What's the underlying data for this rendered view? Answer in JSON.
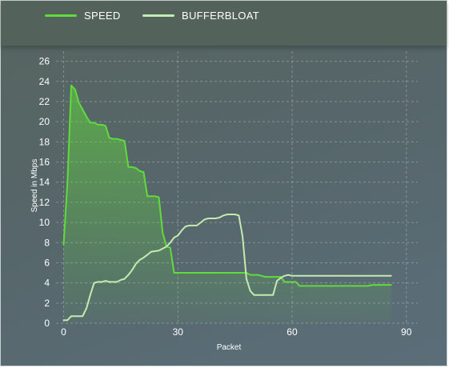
{
  "chart_data": {
    "type": "line",
    "title": "",
    "xlabel": "Packet",
    "ylabel": "Speed in Mbps",
    "xlim": [
      -2,
      93
    ],
    "ylim": [
      0,
      27
    ],
    "x_ticks": [
      0,
      30,
      60,
      90
    ],
    "y_ticks": [
      0,
      2,
      4,
      6,
      8,
      10,
      12,
      14,
      16,
      18,
      20,
      22,
      24,
      26
    ],
    "grid": true,
    "legend_position": "top-left",
    "series": [
      {
        "name": "SPEED",
        "color": "#5fdc3a",
        "fill": true,
        "points": [
          [
            0,
            7.8
          ],
          [
            1,
            14
          ],
          [
            2,
            23.6
          ],
          [
            3,
            23.2
          ],
          [
            4,
            21.9
          ],
          [
            5,
            21.2
          ],
          [
            6,
            20.5
          ],
          [
            7,
            19.9
          ],
          [
            8,
            19.9
          ],
          [
            9,
            19.7
          ],
          [
            10,
            19.7
          ],
          [
            11,
            19.6
          ],
          [
            12,
            18.4
          ],
          [
            13,
            18.3
          ],
          [
            14,
            18.3
          ],
          [
            15,
            18.2
          ],
          [
            16,
            18.1
          ],
          [
            17,
            15.5
          ],
          [
            18,
            15.5
          ],
          [
            19,
            15.4
          ],
          [
            20,
            15.1
          ],
          [
            21,
            15.0
          ],
          [
            22,
            12.6
          ],
          [
            23,
            12.6
          ],
          [
            24,
            12.6
          ],
          [
            25,
            12.5
          ],
          [
            26,
            9.0
          ],
          [
            27,
            7.6
          ],
          [
            28,
            7.5
          ],
          [
            29,
            5.0
          ],
          [
            30,
            5.0
          ],
          [
            35,
            5.0
          ],
          [
            40,
            5.0
          ],
          [
            45,
            5.0
          ],
          [
            48,
            5.0
          ],
          [
            49,
            4.8
          ],
          [
            51,
            4.8
          ],
          [
            52,
            4.7
          ],
          [
            53,
            4.6
          ],
          [
            57,
            4.6
          ],
          [
            58,
            4.1
          ],
          [
            61,
            4.1
          ],
          [
            62,
            3.7
          ],
          [
            70,
            3.7
          ],
          [
            80,
            3.7
          ],
          [
            81,
            3.8
          ],
          [
            86,
            3.8
          ]
        ]
      },
      {
        "name": "BUFFERBLOAT",
        "color": "#c3ebb0",
        "fill": false,
        "points": [
          [
            0,
            0.3
          ],
          [
            1,
            0.3
          ],
          [
            2,
            0.7
          ],
          [
            5,
            0.7
          ],
          [
            6,
            1.5
          ],
          [
            7,
            2.8
          ],
          [
            8,
            4.0
          ],
          [
            9,
            4.1
          ],
          [
            10,
            4.1
          ],
          [
            11,
            4.2
          ],
          [
            12,
            4.1
          ],
          [
            13,
            4.1
          ],
          [
            14,
            4.1
          ],
          [
            15,
            4.3
          ],
          [
            16,
            4.4
          ],
          [
            17,
            4.8
          ],
          [
            18,
            5.3
          ],
          [
            19,
            5.9
          ],
          [
            20,
            6.3
          ],
          [
            21,
            6.5
          ],
          [
            22,
            6.8
          ],
          [
            23,
            7.1
          ],
          [
            25,
            7.2
          ],
          [
            27,
            7.6
          ],
          [
            28,
            8.0
          ],
          [
            29,
            8.5
          ],
          [
            30,
            8.7
          ],
          [
            31,
            9.2
          ],
          [
            32,
            9.6
          ],
          [
            33,
            9.7
          ],
          [
            34,
            9.7
          ],
          [
            35,
            9.7
          ],
          [
            36,
            10.0
          ],
          [
            37,
            10.3
          ],
          [
            38,
            10.4
          ],
          [
            39,
            10.4
          ],
          [
            40,
            10.4
          ],
          [
            41,
            10.5
          ],
          [
            42,
            10.7
          ],
          [
            43,
            10.8
          ],
          [
            44,
            10.8
          ],
          [
            45,
            10.8
          ],
          [
            46,
            10.7
          ],
          [
            47,
            8.6
          ],
          [
            48,
            4.4
          ],
          [
            49,
            3.2
          ],
          [
            50,
            2.8
          ],
          [
            55,
            2.8
          ],
          [
            56,
            4.2
          ],
          [
            57,
            4.5
          ],
          [
            58,
            4.7
          ],
          [
            59,
            4.8
          ],
          [
            60,
            4.7
          ],
          [
            62,
            4.7
          ],
          [
            70,
            4.7
          ],
          [
            80,
            4.7
          ],
          [
            86,
            4.7
          ]
        ]
      }
    ]
  }
}
